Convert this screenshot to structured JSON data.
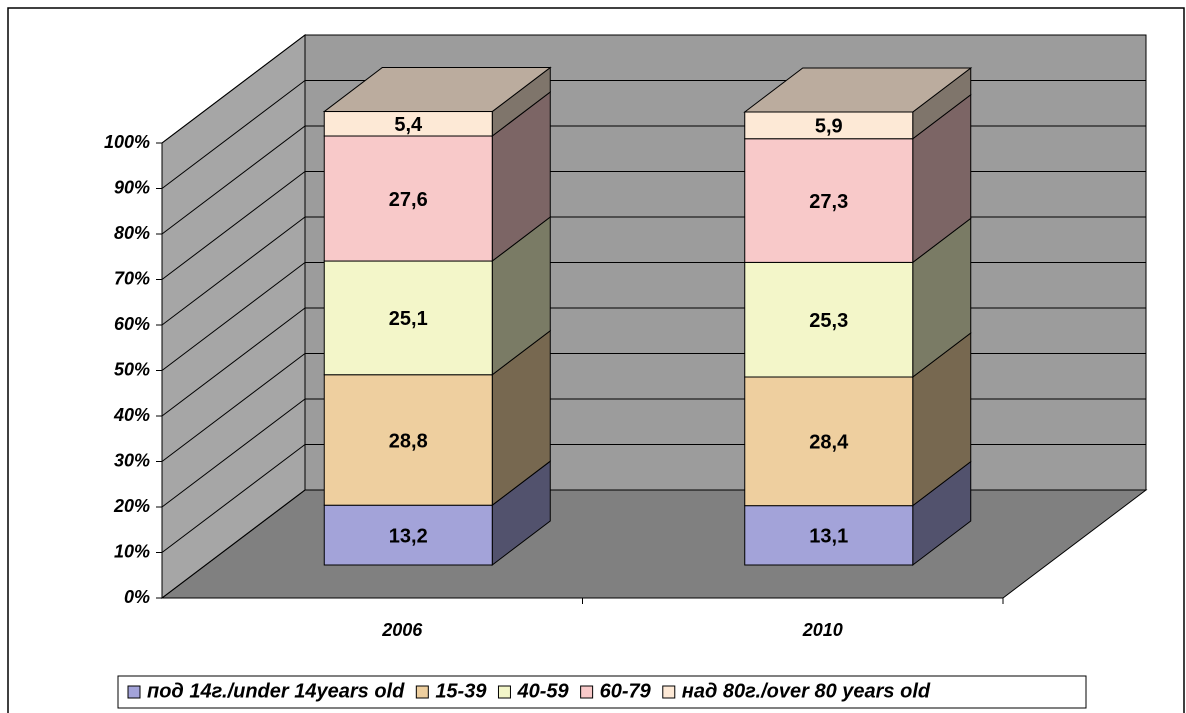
{
  "chart_data": {
    "type": "stacked-bar-3d",
    "categories": [
      "2006",
      "2010"
    ],
    "series": [
      {
        "name": "под 14г./under 14years old",
        "color": "#a3a3d9",
        "values": [
          13.2,
          13.1
        ],
        "value_labels": [
          "13,2",
          "13,1"
        ]
      },
      {
        "name": "15-39",
        "color": "#eecf9f",
        "values": [
          28.8,
          28.4
        ],
        "value_labels": [
          "28,8",
          "28,4"
        ]
      },
      {
        "name": "40-59",
        "color": "#f3f6c9",
        "values": [
          25.1,
          25.3
        ],
        "value_labels": [
          "25,1",
          "25,3"
        ]
      },
      {
        "name": "60-79",
        "color": "#f8c9c9",
        "values": [
          27.6,
          27.3
        ],
        "value_labels": [
          "27,6",
          "27,3"
        ]
      },
      {
        "name": "над 80г./over 80 years old",
        "color": "#fde9d6",
        "values": [
          5.4,
          5.9
        ],
        "value_labels": [
          "5,4",
          "5,9"
        ]
      }
    ],
    "ylim": [
      0,
      100
    ],
    "yticks": [
      {
        "value": 0,
        "label": "0%"
      },
      {
        "value": 10,
        "label": "10%"
      },
      {
        "value": 20,
        "label": "20%"
      },
      {
        "value": 30,
        "label": "30%"
      },
      {
        "value": 40,
        "label": "40%"
      },
      {
        "value": 50,
        "label": "50%"
      },
      {
        "value": 60,
        "label": "60%"
      },
      {
        "value": 70,
        "label": "70%"
      },
      {
        "value": 80,
        "label": "80%"
      },
      {
        "value": 90,
        "label": "90%"
      },
      {
        "value": 100,
        "label": "100%"
      }
    ],
    "grid": true,
    "legend": "bottom"
  }
}
